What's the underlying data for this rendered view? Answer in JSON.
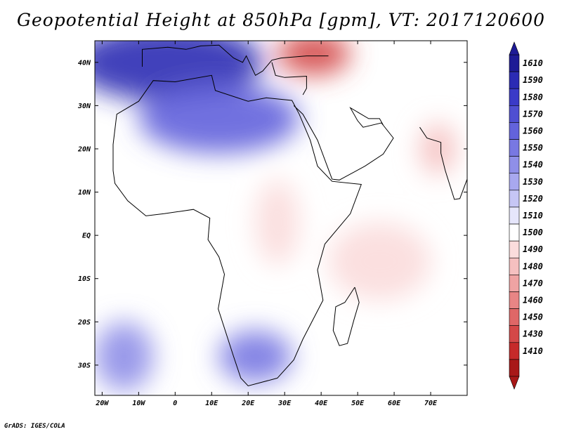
{
  "title": "Geopotential Height at 850hPa [gpm], VT: 2017120600",
  "footer": "GrADS: IGES/COLA",
  "map": {
    "variable": "Geopotential Height at 850hPa",
    "units": "gpm",
    "valid_time": "2017120600",
    "region": "Africa, Middle East and Arabian Sea",
    "lon_range": [
      -22,
      80
    ],
    "lat_range": [
      -37,
      45
    ],
    "lon_labels": [
      {
        "lon": -20,
        "label": "20W"
      },
      {
        "lon": -10,
        "label": "10W"
      },
      {
        "lon": 0,
        "label": "0"
      },
      {
        "lon": 10,
        "label": "10E"
      },
      {
        "lon": 20,
        "label": "20E"
      },
      {
        "lon": 30,
        "label": "30E"
      },
      {
        "lon": 40,
        "label": "40E"
      },
      {
        "lon": 50,
        "label": "50E"
      },
      {
        "lon": 60,
        "label": "60E"
      },
      {
        "lon": 70,
        "label": "70E"
      }
    ],
    "lat_labels": [
      {
        "lat": 40,
        "label": "40N"
      },
      {
        "lat": 30,
        "label": "30N"
      },
      {
        "lat": 20,
        "label": "20N"
      },
      {
        "lat": 10,
        "label": "10N"
      },
      {
        "lat": 0,
        "label": "EQ"
      },
      {
        "lat": -10,
        "label": "10S"
      },
      {
        "lat": -20,
        "label": "20S"
      },
      {
        "lat": -30,
        "label": "30S"
      }
    ],
    "field_features": [
      {
        "name": "mediterranean-high",
        "lon": -2,
        "lat": 40,
        "value": 1600,
        "rx": 26,
        "ry": 9
      },
      {
        "name": "sahara-high",
        "lon": 12,
        "lat": 27,
        "value": 1560,
        "rx": 22,
        "ry": 8
      },
      {
        "name": "turkey-low",
        "lon": 38,
        "lat": 42,
        "value": 1430,
        "rx": 10,
        "ry": 5
      },
      {
        "name": "india-low",
        "lon": 72,
        "lat": 20,
        "value": 1480,
        "rx": 5,
        "ry": 6
      },
      {
        "name": "south-africa-high",
        "lon": 22,
        "lat": -28,
        "value": 1550,
        "rx": 10,
        "ry": 6
      },
      {
        "name": "south-atlantic-high",
        "lon": -14,
        "lat": -28,
        "value": 1540,
        "rx": 8,
        "ry": 8
      },
      {
        "name": "indian-ocean-low",
        "lon": 56,
        "lat": -6,
        "value": 1490,
        "rx": 14,
        "ry": 9
      },
      {
        "name": "east-africa-low",
        "lon": 28,
        "lat": 3,
        "value": 1495,
        "rx": 6,
        "ry": 10
      }
    ]
  },
  "colorbar": {
    "labels": [
      "1610",
      "1590",
      "1580",
      "1570",
      "1560",
      "1550",
      "1540",
      "1530",
      "1520",
      "1510",
      "1500",
      "1490",
      "1480",
      "1470",
      "1460",
      "1450",
      "1430",
      "1410"
    ],
    "colors": [
      "#1e1b96",
      "#2b2bb4",
      "#3a3ac8",
      "#4f4fd2",
      "#6363dc",
      "#7878e2",
      "#8f8fe8",
      "#a8a8ef",
      "#c6c6f5",
      "#e6e6fb",
      "#ffffff",
      "#fbdcdc",
      "#f5c0c0",
      "#efa3a3",
      "#e88585",
      "#df6767",
      "#d44848",
      "#c62a2a",
      "#a81818"
    ]
  }
}
